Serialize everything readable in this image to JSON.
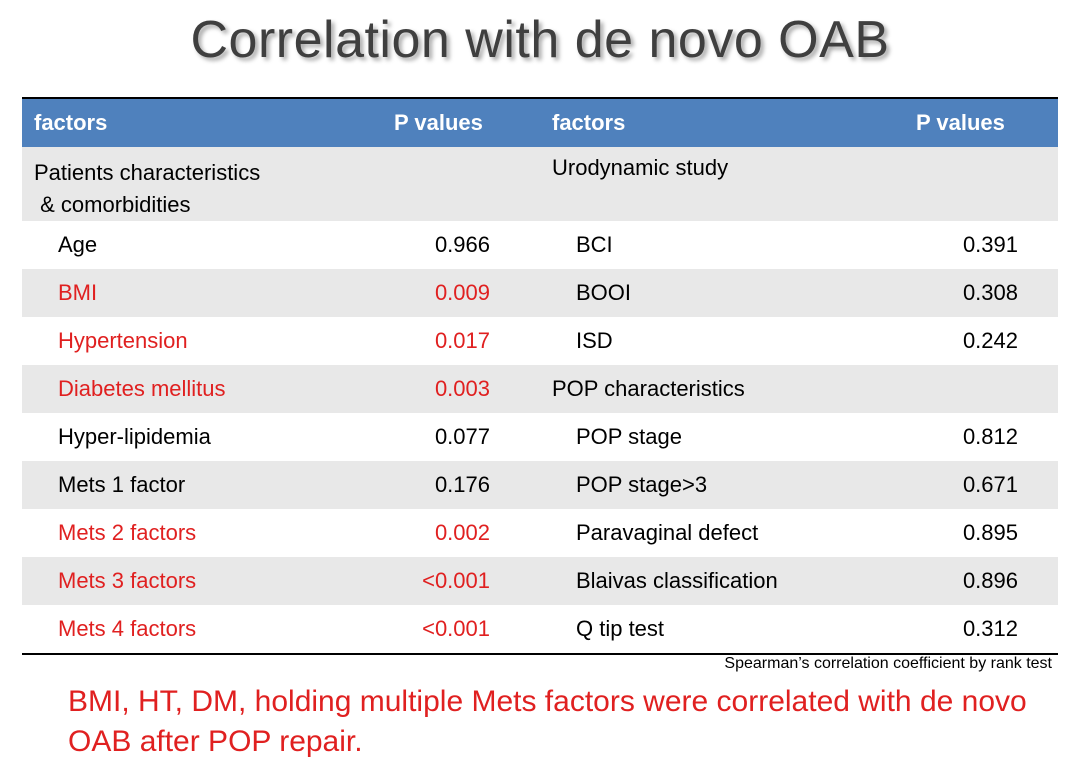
{
  "title": "Correlation with de novo OAB",
  "table": {
    "headers": [
      "factors",
      "P values",
      "factors",
      "P values"
    ],
    "group_left_line1": "Patients characteristics",
    "group_left_line2": " & comorbidities",
    "group_right": "Urodynamic study",
    "rows": [
      {
        "left_factor": "Age",
        "left_p": "0.966",
        "right_factor": "BCI",
        "right_p": "0.391"
      },
      {
        "left_factor": "BMI",
        "left_p": "0.009",
        "right_factor": "BOOI",
        "right_p": "0.308"
      },
      {
        "left_factor": "Hypertension",
        "left_p": "0.017",
        "right_factor": "ISD",
        "right_p": "0.242"
      },
      {
        "left_factor": "Diabetes mellitus",
        "left_p": "0.003",
        "right_factor": "POP characteristics",
        "right_p": ""
      },
      {
        "left_factor": "Hyper-lipidemia",
        "left_p": "0.077",
        "right_factor": "POP stage",
        "right_p": "0.812"
      },
      {
        "left_factor": "Mets 1 factor",
        "left_p": "0.176",
        "right_factor": "POP stage>3",
        "right_p": "0.671"
      },
      {
        "left_factor": "Mets 2 factors",
        "left_p": "0.002",
        "right_factor": "Paravaginal defect",
        "right_p": "0.895"
      },
      {
        "left_factor": "Mets 3 factors",
        "left_p": "<0.001",
        "right_factor": "Blaivas classification",
        "right_p": "0.896"
      },
      {
        "left_factor": "Mets 4 factors",
        "left_p": "<0.001",
        "right_factor": "Q tip test",
        "right_p": "0.312"
      }
    ]
  },
  "footnote": "Spearman’s correlation coefficient by rank test",
  "conclusion": "BMI, HT, DM, holding multiple Mets factors were correlated with de novo OAB after POP repair.",
  "colors": {
    "header_bg": "#4f81bd",
    "highlight": "#e02020",
    "shade": "#e8e8e8"
  }
}
